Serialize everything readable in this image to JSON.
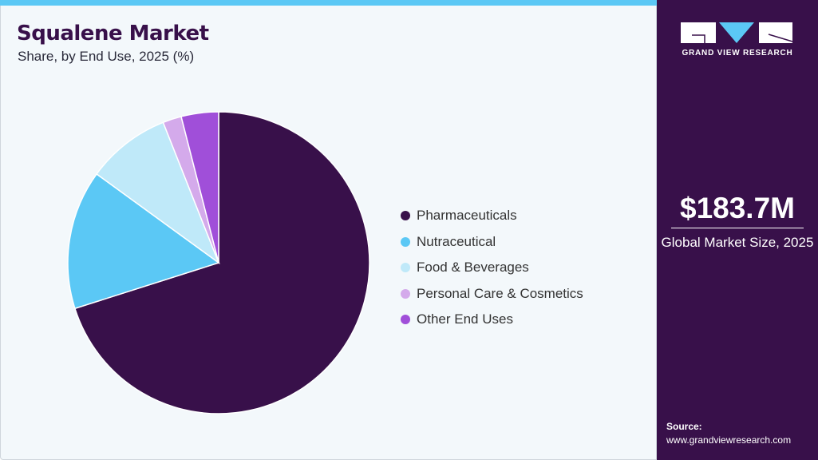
{
  "header": {
    "title": "Squalene Market",
    "subtitle": "Share, by End Use, 2025 (%)"
  },
  "chart_data": {
    "type": "pie",
    "categories": [
      "Pharmaceuticals",
      "Nutraceutical",
      "Food & Beverages",
      "Personal Care & Cosmetics",
      "Other End Uses"
    ],
    "values": [
      70.1,
      14.9,
      9.0,
      2.0,
      4.0
    ],
    "colors": [
      "#38104a",
      "#5bc8f5",
      "#bfe9f9",
      "#d4aaeb",
      "#a04fd9"
    ],
    "legend_position": "right"
  },
  "sidebar": {
    "logo_text": "GRAND VIEW RESEARCH",
    "market_size": "$183.7M",
    "market_size_label": "Global Market Size, 2025",
    "source_label": "Source:",
    "source_url": "www.grandviewresearch.com"
  }
}
